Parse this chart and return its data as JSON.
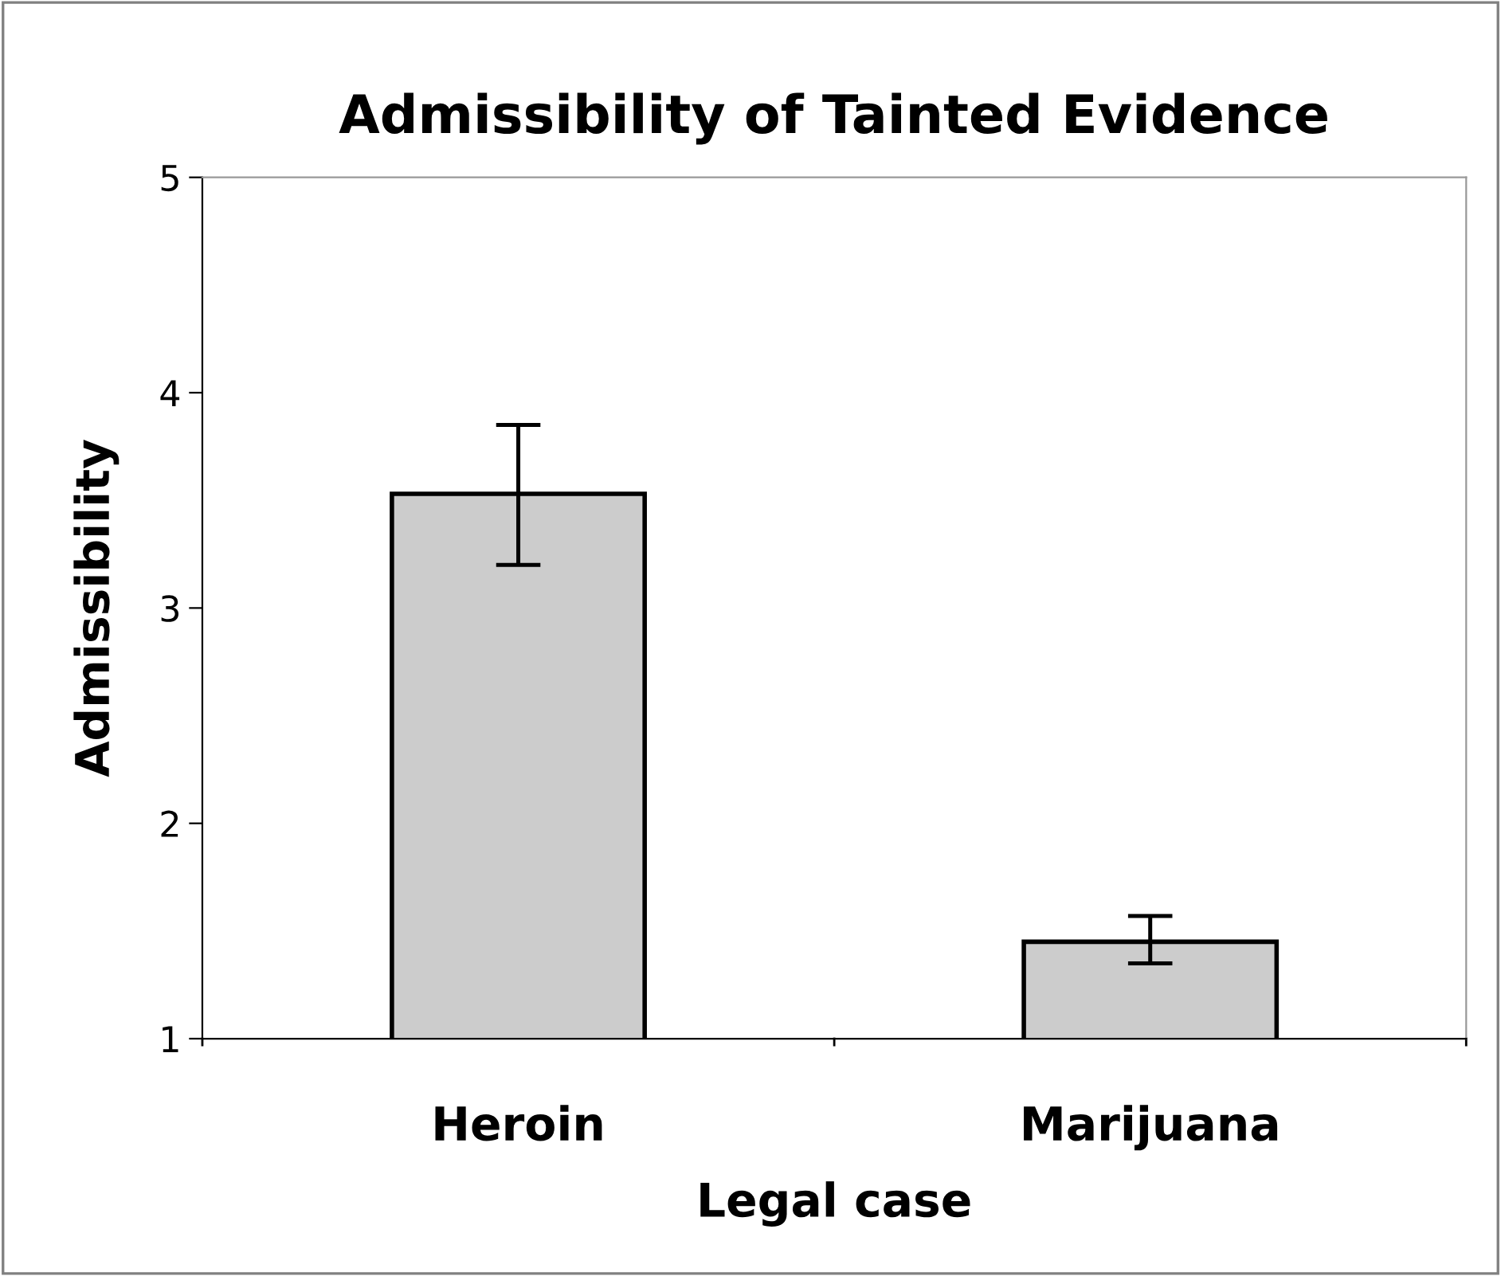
{
  "chart_data": {
    "type": "bar",
    "title": "Admissibility of Tainted Evidence",
    "xlabel": "Legal case",
    "ylabel": "Admissibility",
    "categories": [
      "Heroin",
      "Marijuana"
    ],
    "values": [
      3.53,
      1.45
    ],
    "errors": [
      [
        3.2,
        3.85
      ],
      [
        1.35,
        1.57
      ]
    ],
    "color": "#cccccc",
    "ylim": [
      1,
      5
    ],
    "yticks": [
      1,
      2,
      3,
      4,
      5
    ],
    "grid": false
  }
}
